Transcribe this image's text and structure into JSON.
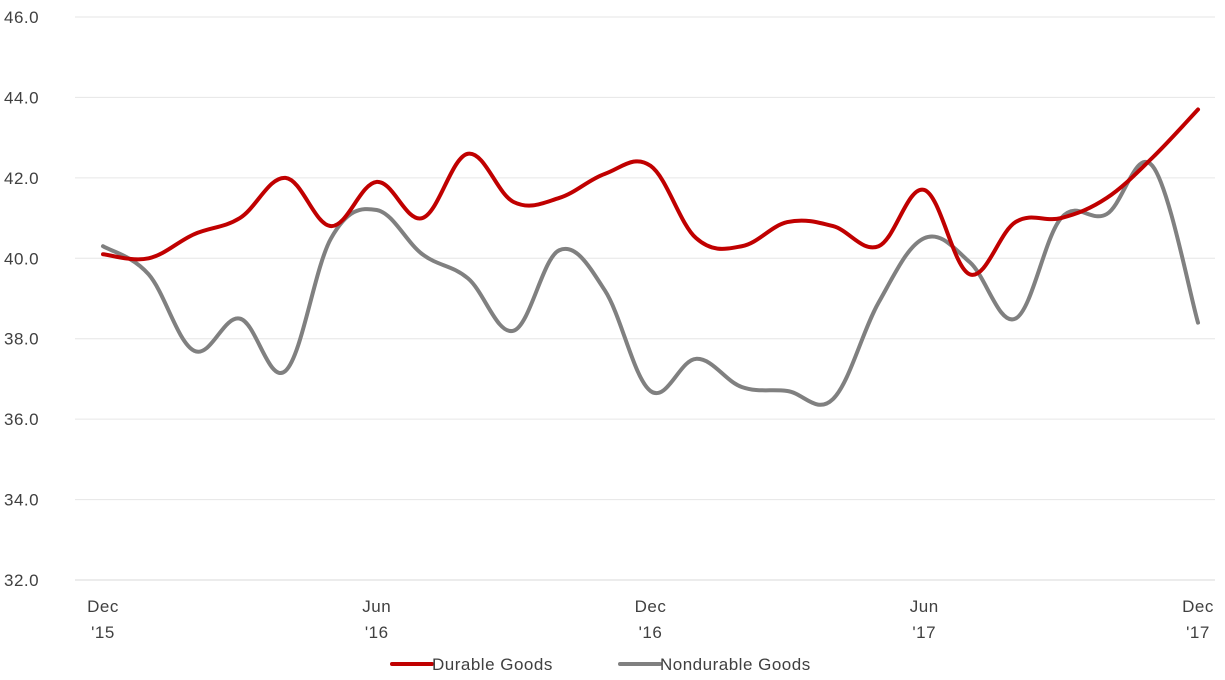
{
  "chart_data": {
    "type": "line",
    "title": "",
    "xlabel": "",
    "ylabel": "",
    "ylim": [
      32,
      46
    ],
    "y_ticks": [
      "32.0",
      "34.0",
      "36.0",
      "38.0",
      "40.0",
      "42.0",
      "44.0",
      "46.0"
    ],
    "x_ticks": [
      {
        "line1": "Dec",
        "line2": "'15"
      },
      {
        "line1": "Jun",
        "line2": "'16"
      },
      {
        "line1": "Dec",
        "line2": "'16"
      },
      {
        "line1": "Jun",
        "line2": "'17"
      },
      {
        "line1": "Dec",
        "line2": "'17"
      }
    ],
    "categories": [
      "Dec '15",
      "Jan '16",
      "Feb '16",
      "Mar '16",
      "Apr '16",
      "May '16",
      "Jun '16",
      "Jul '16",
      "Aug '16",
      "Sep '16",
      "Oct '16",
      "Nov '16",
      "Dec '16",
      "Jan '17",
      "Feb '17",
      "Mar '17",
      "Apr '17",
      "May '17",
      "Jun '17",
      "Jul '17",
      "Aug '17",
      "Sep '17",
      "Oct '17",
      "Nov '17",
      "Dec '17"
    ],
    "grid": true,
    "legend_position": "bottom",
    "series": [
      {
        "name": "Durable Goods",
        "color": "#C00000",
        "values": [
          40.1,
          40.0,
          40.6,
          41.0,
          42.0,
          40.8,
          41.9,
          41.0,
          42.6,
          41.4,
          41.5,
          42.1,
          42.3,
          40.5,
          40.3,
          40.9,
          40.8,
          40.3,
          41.7,
          39.6,
          40.9,
          41.0,
          41.5,
          42.5,
          43.7
        ]
      },
      {
        "name": "Nondurable Goods",
        "color": "#808080",
        "values": [
          40.3,
          39.6,
          37.7,
          38.5,
          37.2,
          40.5,
          41.2,
          40.1,
          39.5,
          38.2,
          40.2,
          39.2,
          36.7,
          37.5,
          36.8,
          36.7,
          36.5,
          38.9,
          40.5,
          39.9,
          38.5,
          41.0,
          41.1,
          42.3,
          38.4
        ]
      }
    ]
  }
}
